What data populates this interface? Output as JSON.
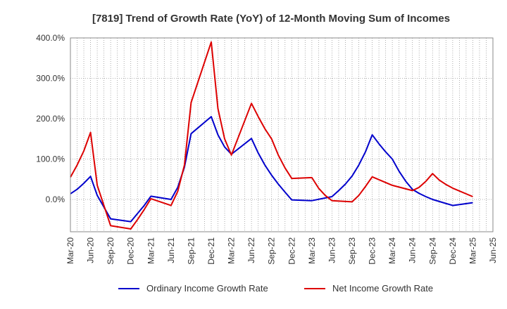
{
  "chart_data": {
    "type": "line",
    "title": "[7819]  Trend of Growth Rate (YoY) of 12-Month Moving Sum of Incomes",
    "xlabel": "",
    "ylabel": "",
    "ylim": [
      -80,
      400
    ],
    "yticks": [
      0,
      100,
      200,
      300,
      400
    ],
    "ytick_labels": [
      "0.0%",
      "100.0%",
      "200.0%",
      "300.0%",
      "400.0%"
    ],
    "x_ticks": [
      "Mar-20",
      "Jun-20",
      "Sep-20",
      "Dec-20",
      "Mar-21",
      "Jun-21",
      "Sep-21",
      "Dec-21",
      "Mar-22",
      "Jun-22",
      "Sep-22",
      "Dec-22",
      "Mar-23",
      "Jun-23",
      "Sep-23",
      "Dec-23",
      "Mar-24",
      "Jun-24",
      "Sep-24",
      "Dec-24",
      "Mar-25",
      "Jun-25"
    ],
    "x_range_months": [
      "Mar-20",
      "Jun-25"
    ],
    "grid": true,
    "legend_position": "bottom",
    "series": [
      {
        "name": "Ordinary Income Growth Rate",
        "color": "#0000cc",
        "values": [
          [
            "Mar-20",
            14
          ],
          [
            "Apr-20",
            25
          ],
          [
            "May-20",
            40
          ],
          [
            "Jun-20",
            57
          ],
          [
            "Jul-20",
            10
          ],
          [
            "Sep-20",
            -48
          ],
          [
            "Dec-20",
            -55
          ],
          [
            "Jan-21",
            -35
          ],
          [
            "Feb-21",
            -15
          ],
          [
            "Mar-21",
            8
          ],
          [
            "Jun-21",
            0
          ],
          [
            "Jul-21",
            30
          ],
          [
            "Aug-21",
            80
          ],
          [
            "Sep-21",
            163
          ],
          [
            "Dec-21",
            205
          ],
          [
            "Jan-22",
            160
          ],
          [
            "Feb-22",
            130
          ],
          [
            "Mar-22",
            112
          ],
          [
            "Jun-22",
            151
          ],
          [
            "Jul-22",
            115
          ],
          [
            "Aug-22",
            85
          ],
          [
            "Sep-22",
            60
          ],
          [
            "Oct-22",
            38
          ],
          [
            "Nov-22",
            18
          ],
          [
            "Dec-22",
            -1
          ],
          [
            "Mar-23",
            -3
          ],
          [
            "Jun-23",
            7
          ],
          [
            "Jul-23",
            22
          ],
          [
            "Aug-23",
            38
          ],
          [
            "Sep-23",
            58
          ],
          [
            "Oct-23",
            85
          ],
          [
            "Nov-23",
            118
          ],
          [
            "Dec-23",
            160
          ],
          [
            "Jan-24",
            138
          ],
          [
            "Feb-24",
            118
          ],
          [
            "Mar-24",
            100
          ],
          [
            "Apr-24",
            70
          ],
          [
            "May-24",
            45
          ],
          [
            "Jun-24",
            25
          ],
          [
            "Jul-24",
            15
          ],
          [
            "Aug-24",
            7
          ],
          [
            "Sep-24",
            0
          ],
          [
            "Dec-24",
            -15
          ],
          [
            "Mar-25",
            -8
          ]
        ]
      },
      {
        "name": "Net Income Growth Rate",
        "color": "#dd0000",
        "values": [
          [
            "Mar-20",
            55
          ],
          [
            "Apr-20",
            85
          ],
          [
            "May-20",
            120
          ],
          [
            "Jun-20",
            166
          ],
          [
            "Jul-20",
            35
          ],
          [
            "Sep-20",
            -65
          ],
          [
            "Dec-20",
            -73
          ],
          [
            "Jan-21",
            -50
          ],
          [
            "Feb-21",
            -25
          ],
          [
            "Mar-21",
            2
          ],
          [
            "Jun-21",
            -15
          ],
          [
            "Jul-21",
            20
          ],
          [
            "Aug-21",
            85
          ],
          [
            "Sep-21",
            240
          ],
          [
            "Dec-21",
            390
          ],
          [
            "Jan-22",
            225
          ],
          [
            "Feb-22",
            150
          ],
          [
            "Mar-22",
            110
          ],
          [
            "Jun-22",
            238
          ],
          [
            "Jul-22",
            205
          ],
          [
            "Aug-22",
            175
          ],
          [
            "Sep-22",
            150
          ],
          [
            "Oct-22",
            110
          ],
          [
            "Nov-22",
            78
          ],
          [
            "Dec-22",
            52
          ],
          [
            "Mar-23",
            54
          ],
          [
            "Apr-23",
            28
          ],
          [
            "May-23",
            10
          ],
          [
            "Jun-23",
            -3
          ],
          [
            "Sep-23",
            -6
          ],
          [
            "Oct-23",
            10
          ],
          [
            "Nov-23",
            32
          ],
          [
            "Dec-23",
            56
          ],
          [
            "Mar-24",
            35
          ],
          [
            "Jun-24",
            22
          ],
          [
            "Jul-24",
            30
          ],
          [
            "Aug-24",
            45
          ],
          [
            "Sep-24",
            64
          ],
          [
            "Oct-24",
            48
          ],
          [
            "Nov-24",
            37
          ],
          [
            "Dec-24",
            28
          ],
          [
            "Mar-25",
            7
          ]
        ]
      }
    ]
  }
}
